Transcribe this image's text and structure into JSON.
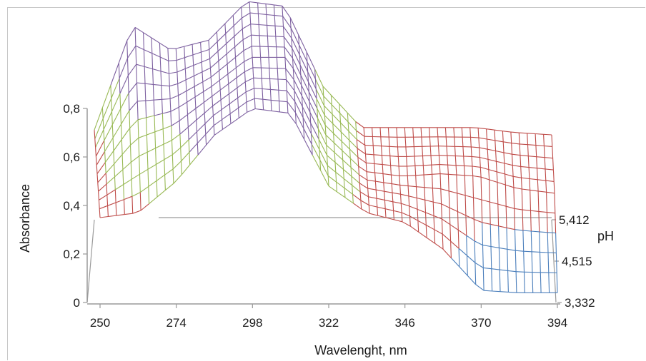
{
  "chart_data": {
    "type": "surface",
    "xlabel": "Wavelenght, nm",
    "ylabel": "Absorbance",
    "zlabel": "pH",
    "x_ticks": [
      "250",
      "274",
      "298",
      "322",
      "346",
      "370",
      "394"
    ],
    "y_ticks": [
      "0",
      "0,2",
      "0,4",
      "0,6",
      "0,8"
    ],
    "z_ticks": [
      "3,332",
      "4,515",
      "5,412"
    ],
    "ylim": [
      0,
      0.8
    ],
    "x": [
      250,
      262,
      274,
      286,
      298,
      310,
      322,
      334,
      346,
      358,
      370,
      382,
      394
    ],
    "bands": [
      {
        "range": "0-0,2",
        "color": "#4a7ebb"
      },
      {
        "range": "0,2-0,4",
        "color": "#be4b48"
      },
      {
        "range": "0,4-0,6",
        "color": "#98b954"
      },
      {
        "range": "0,6-0,8",
        "color": "#7d60a0"
      }
    ],
    "series": [
      {
        "name": "3,332",
        "values": [
          0.35,
          0.37,
          0.5,
          0.69,
          0.8,
          0.78,
          0.48,
          0.37,
          0.33,
          0.22,
          0.05,
          0.04,
          0.04
        ]
      },
      {
        "name": "4,515",
        "values": [
          0.36,
          0.58,
          0.62,
          0.72,
          0.84,
          0.84,
          0.52,
          0.37,
          0.35,
          0.36,
          0.35,
          0.3,
          0.28
        ]
      },
      {
        "name": "5,412",
        "values": [
          0.37,
          0.8,
          0.7,
          0.74,
          0.9,
          0.88,
          0.55,
          0.38,
          0.38,
          0.38,
          0.38,
          0.36,
          0.35
        ]
      }
    ]
  }
}
